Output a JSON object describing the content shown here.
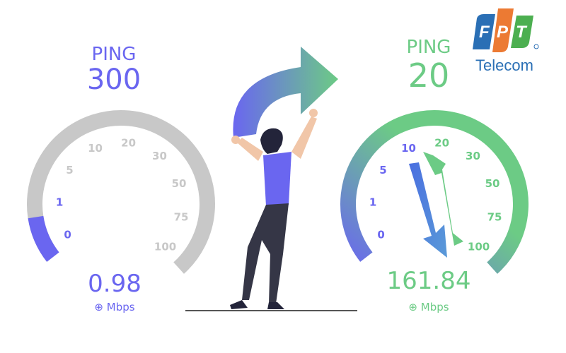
{
  "before": {
    "ping_label": "PING",
    "ping_value": "300",
    "speed_value": "0.98",
    "speed_unit": "Mbps",
    "speed_icon": "download-arrow-icon",
    "ticks": [
      "0",
      "1",
      "5",
      "10",
      "20",
      "30",
      "50",
      "75",
      "100"
    ],
    "fill_fraction": 0.11,
    "color": "#6a66f0",
    "track_color": "#c8c8c8",
    "tick_color": "#c8c8c8"
  },
  "after": {
    "ping_label": "PING",
    "ping_value": "20",
    "speed_value": "161.84",
    "speed_unit": "Mbps",
    "speed_icon": "download-arrow-icon",
    "ticks": [
      "0",
      "1",
      "5",
      "10",
      "20",
      "30",
      "50",
      "75",
      "100"
    ],
    "fill_fraction": 1.0,
    "color": "#6ccb85",
    "gradient_start": "#6a66f0",
    "gradient_end": "#6ccb85"
  },
  "logo": {
    "letters": "FPT",
    "subtitle": "Telecom",
    "colors": [
      "#2a6fb5",
      "#ec7a33",
      "#4caf50"
    ]
  }
}
